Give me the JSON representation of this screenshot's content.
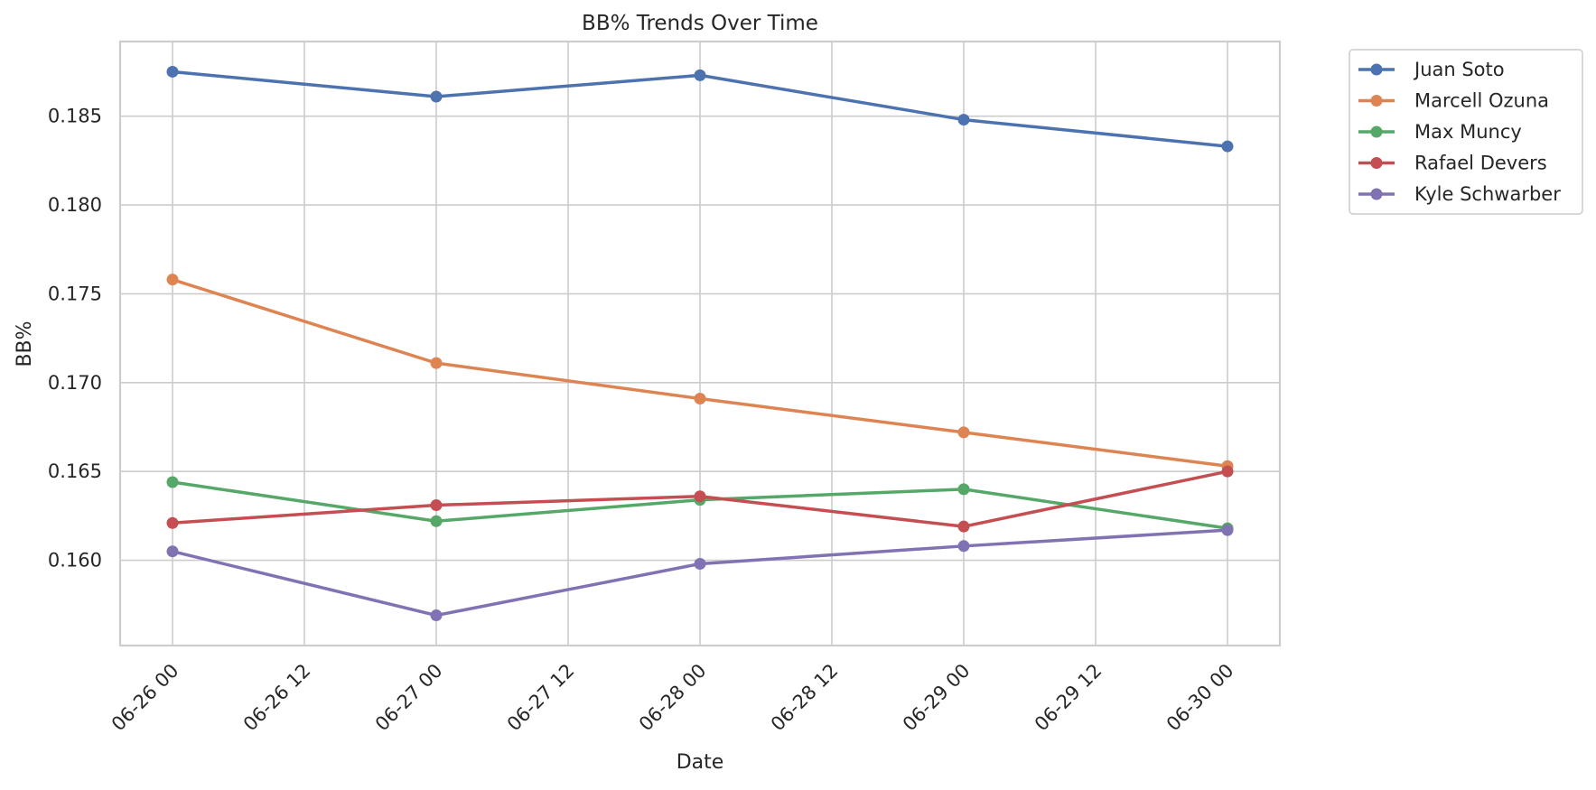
{
  "chart_data": {
    "type": "line",
    "title": "BB% Trends Over Time",
    "xlabel": "Date",
    "ylabel": "BB%",
    "x": [
      "06-26 00",
      "06-27 00",
      "06-28 00",
      "06-29 00",
      "06-30 00"
    ],
    "x_ticks": [
      "06-26 00",
      "06-26 12",
      "06-27 00",
      "06-27 12",
      "06-28 00",
      "06-28 12",
      "06-29 00",
      "06-29 12",
      "06-30 00"
    ],
    "y_ticks": [
      "0.160",
      "0.165",
      "0.170",
      "0.175",
      "0.180",
      "0.185"
    ],
    "ylim": [
      0.1552,
      0.1892
    ],
    "grid": true,
    "legend_position": "outside top-right",
    "series": [
      {
        "name": "Juan Soto",
        "color": "#4c72b0",
        "values": [
          0.1875,
          0.1861,
          0.1873,
          0.1848,
          0.1833
        ]
      },
      {
        "name": "Marcell Ozuna",
        "color": "#dd8452",
        "values": [
          0.1758,
          0.1711,
          0.1691,
          0.1672,
          0.1653
        ]
      },
      {
        "name": "Max Muncy",
        "color": "#55a868",
        "values": [
          0.1644,
          0.1622,
          0.1634,
          0.164,
          0.1618
        ]
      },
      {
        "name": "Rafael Devers",
        "color": "#c44e52",
        "values": [
          0.1621,
          0.1631,
          0.1636,
          0.1619,
          0.165
        ]
      },
      {
        "name": "Kyle Schwarber",
        "color": "#8172b3",
        "values": [
          0.1605,
          0.1569,
          0.1598,
          0.1608,
          0.1617
        ]
      }
    ]
  }
}
